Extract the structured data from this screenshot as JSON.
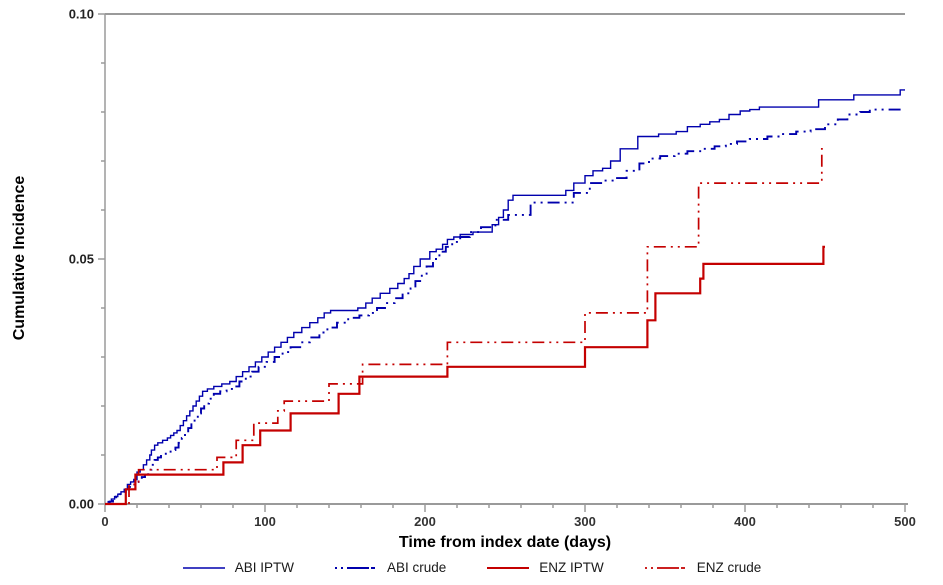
{
  "y_axis_title": "Cumulative Incidence",
  "x_axis_title": "Time from index date (days)",
  "chart_data": {
    "type": "line",
    "subtype": "step-cumulative-incidence",
    "title": "",
    "xlabel": "Time from index date (days)",
    "ylabel": "Cumulative Incidence",
    "xlim": [
      0,
      500
    ],
    "ylim": [
      0.0,
      0.1
    ],
    "grid": false,
    "legend_position": "bottom-center",
    "x_ticks": [
      0,
      100,
      200,
      300,
      400,
      500
    ],
    "x_tick_labels": [
      "0",
      "100",
      "200",
      "300",
      "400",
      "500"
    ],
    "x_minor_step": 20,
    "y_ticks": [
      0.0,
      0.05,
      0.1
    ],
    "y_tick_labels": [
      "0.00",
      "0.05",
      "0.10"
    ],
    "y_minor_step": 0.01,
    "style": {
      "axis_color": "#9a9a9a",
      "tick_text_color": "#333333",
      "blue": "#0000ad",
      "red": "#c40000"
    },
    "series": [
      {
        "name": "ABI IPTW",
        "color": "#0000ad",
        "line_style": "solid",
        "line_width": 1.4,
        "points": [
          [
            0,
            0
          ],
          [
            2,
            0.0005
          ],
          [
            4,
            0.001
          ],
          [
            6,
            0.0015
          ],
          [
            8,
            0.002
          ],
          [
            10,
            0.0025
          ],
          [
            12,
            0.003
          ],
          [
            14,
            0.004
          ],
          [
            16,
            0.0045
          ],
          [
            18,
            0.005
          ],
          [
            20,
            0.0065
          ],
          [
            22,
            0.007
          ],
          [
            24,
            0.008
          ],
          [
            26,
            0.009
          ],
          [
            28,
            0.01
          ],
          [
            29,
            0.011
          ],
          [
            31,
            0.012
          ],
          [
            33,
            0.0125
          ],
          [
            36,
            0.013
          ],
          [
            39,
            0.0135
          ],
          [
            41,
            0.014
          ],
          [
            43,
            0.0145
          ],
          [
            45,
            0.015
          ],
          [
            47,
            0.016
          ],
          [
            49,
            0.017
          ],
          [
            51,
            0.018
          ],
          [
            53,
            0.019
          ],
          [
            55,
            0.02
          ],
          [
            57,
            0.021
          ],
          [
            59,
            0.022
          ],
          [
            61,
            0.023
          ],
          [
            64,
            0.0235
          ],
          [
            68,
            0.024
          ],
          [
            73,
            0.0245
          ],
          [
            78,
            0.025
          ],
          [
            82,
            0.026
          ],
          [
            86,
            0.027
          ],
          [
            90,
            0.028
          ],
          [
            94,
            0.029
          ],
          [
            98,
            0.03
          ],
          [
            102,
            0.031
          ],
          [
            106,
            0.032
          ],
          [
            110,
            0.033
          ],
          [
            114,
            0.034
          ],
          [
            118,
            0.035
          ],
          [
            123,
            0.036
          ],
          [
            128,
            0.037
          ],
          [
            133,
            0.038
          ],
          [
            137,
            0.039
          ],
          [
            141,
            0.0395
          ],
          [
            158,
            0.04
          ],
          [
            163,
            0.041
          ],
          [
            167,
            0.042
          ],
          [
            172,
            0.043
          ],
          [
            178,
            0.044
          ],
          [
            183,
            0.045
          ],
          [
            187,
            0.046
          ],
          [
            190,
            0.047
          ],
          [
            193,
            0.0485
          ],
          [
            197,
            0.05
          ],
          [
            203,
            0.0515
          ],
          [
            207,
            0.052
          ],
          [
            211,
            0.053
          ],
          [
            214,
            0.054
          ],
          [
            218,
            0.0545
          ],
          [
            222,
            0.055
          ],
          [
            230,
            0.0555
          ],
          [
            242,
            0.057
          ],
          [
            246,
            0.0585
          ],
          [
            249,
            0.06
          ],
          [
            252,
            0.062
          ],
          [
            255,
            0.063
          ],
          [
            288,
            0.064
          ],
          [
            293,
            0.0655
          ],
          [
            300,
            0.067
          ],
          [
            305,
            0.068
          ],
          [
            311,
            0.0685
          ],
          [
            316,
            0.07
          ],
          [
            322,
            0.0725
          ],
          [
            333,
            0.075
          ],
          [
            346,
            0.0755
          ],
          [
            357,
            0.076
          ],
          [
            364,
            0.077
          ],
          [
            372,
            0.0775
          ],
          [
            378,
            0.078
          ],
          [
            384,
            0.0785
          ],
          [
            390,
            0.0795
          ],
          [
            397,
            0.0802
          ],
          [
            403,
            0.0805
          ],
          [
            409,
            0.081
          ],
          [
            446,
            0.0825
          ],
          [
            468,
            0.0835
          ],
          [
            497,
            0.0845
          ],
          [
            500,
            0.0845
          ]
        ]
      },
      {
        "name": "ABI crude",
        "color": "#0000ad",
        "line_style": "dash-dot-dot",
        "line_width": 1.9,
        "points": [
          [
            0,
            0
          ],
          [
            3,
            0.0005
          ],
          [
            5,
            0.001
          ],
          [
            7,
            0.0015
          ],
          [
            9,
            0.002
          ],
          [
            11,
            0.0025
          ],
          [
            13,
            0.003
          ],
          [
            15,
            0.0035
          ],
          [
            17,
            0.004
          ],
          [
            19,
            0.0045
          ],
          [
            21,
            0.005
          ],
          [
            23,
            0.0055
          ],
          [
            25,
            0.006
          ],
          [
            27,
            0.007
          ],
          [
            29,
            0.008
          ],
          [
            31,
            0.009
          ],
          [
            33,
            0.0095
          ],
          [
            35,
            0.01
          ],
          [
            38,
            0.0105
          ],
          [
            41,
            0.011
          ],
          [
            44,
            0.0115
          ],
          [
            46,
            0.0125
          ],
          [
            48,
            0.0135
          ],
          [
            50,
            0.0145
          ],
          [
            52,
            0.0155
          ],
          [
            54,
            0.0165
          ],
          [
            56,
            0.0175
          ],
          [
            58,
            0.0185
          ],
          [
            60,
            0.0195
          ],
          [
            62,
            0.0205
          ],
          [
            65,
            0.0215
          ],
          [
            68,
            0.0225
          ],
          [
            72,
            0.023
          ],
          [
            76,
            0.0235
          ],
          [
            80,
            0.024
          ],
          [
            84,
            0.025
          ],
          [
            88,
            0.026
          ],
          [
            92,
            0.027
          ],
          [
            96,
            0.028
          ],
          [
            101,
            0.029
          ],
          [
            106,
            0.03
          ],
          [
            111,
            0.031
          ],
          [
            116,
            0.032
          ],
          [
            122,
            0.033
          ],
          [
            128,
            0.034
          ],
          [
            134,
            0.035
          ],
          [
            139,
            0.036
          ],
          [
            145,
            0.037
          ],
          [
            152,
            0.038
          ],
          [
            159,
            0.0385
          ],
          [
            165,
            0.039
          ],
          [
            170,
            0.04
          ],
          [
            175,
            0.041
          ],
          [
            181,
            0.042
          ],
          [
            186,
            0.043
          ],
          [
            191,
            0.044
          ],
          [
            194,
            0.0455
          ],
          [
            198,
            0.047
          ],
          [
            201,
            0.0485
          ],
          [
            205,
            0.05
          ],
          [
            209,
            0.0515
          ],
          [
            213,
            0.0525
          ],
          [
            217,
            0.0535
          ],
          [
            222,
            0.0545
          ],
          [
            228,
            0.0555
          ],
          [
            235,
            0.0565
          ],
          [
            244,
            0.058
          ],
          [
            252,
            0.059
          ],
          [
            266,
            0.0615
          ],
          [
            293,
            0.0635
          ],
          [
            303,
            0.0655
          ],
          [
            311,
            0.066
          ],
          [
            318,
            0.0665
          ],
          [
            326,
            0.068
          ],
          [
            334,
            0.0695
          ],
          [
            340,
            0.0705
          ],
          [
            347,
            0.071
          ],
          [
            356,
            0.0715
          ],
          [
            364,
            0.072
          ],
          [
            372,
            0.0725
          ],
          [
            381,
            0.073
          ],
          [
            388,
            0.0735
          ],
          [
            395,
            0.074
          ],
          [
            403,
            0.0745
          ],
          [
            414,
            0.075
          ],
          [
            423,
            0.0755
          ],
          [
            432,
            0.076
          ],
          [
            441,
            0.0765
          ],
          [
            450,
            0.0775
          ],
          [
            458,
            0.0785
          ],
          [
            464,
            0.0795
          ],
          [
            472,
            0.08
          ],
          [
            478,
            0.0805
          ],
          [
            500,
            0.0805
          ]
        ]
      },
      {
        "name": "ENZ IPTW",
        "color": "#c40000",
        "line_style": "solid",
        "line_width": 2.2,
        "points": [
          [
            0,
            0
          ],
          [
            13,
            0.003
          ],
          [
            19,
            0.006
          ],
          [
            74,
            0.0085
          ],
          [
            86,
            0.012
          ],
          [
            97,
            0.015
          ],
          [
            116,
            0.0185
          ],
          [
            146,
            0.0225
          ],
          [
            159,
            0.026
          ],
          [
            214,
            0.028
          ],
          [
            300,
            0.032
          ],
          [
            339,
            0.0375
          ],
          [
            344,
            0.043
          ],
          [
            372,
            0.046
          ],
          [
            374,
            0.049
          ],
          [
            449,
            0.0525
          ],
          [
            450,
            0.0525
          ]
        ]
      },
      {
        "name": "ENZ crude",
        "color": "#c40000",
        "line_style": "dash-dot-dot",
        "line_width": 1.7,
        "points": [
          [
            0,
            0
          ],
          [
            15,
            0.004
          ],
          [
            21,
            0.007
          ],
          [
            70,
            0.0095
          ],
          [
            82,
            0.013
          ],
          [
            93,
            0.0165
          ],
          [
            108,
            0.019
          ],
          [
            112,
            0.021
          ],
          [
            140,
            0.0245
          ],
          [
            161,
            0.0285
          ],
          [
            214,
            0.033
          ],
          [
            300,
            0.039
          ],
          [
            339,
            0.0525
          ],
          [
            371,
            0.0655
          ],
          [
            448,
            0.0725
          ],
          [
            450,
            0.0725
          ]
        ]
      }
    ]
  }
}
